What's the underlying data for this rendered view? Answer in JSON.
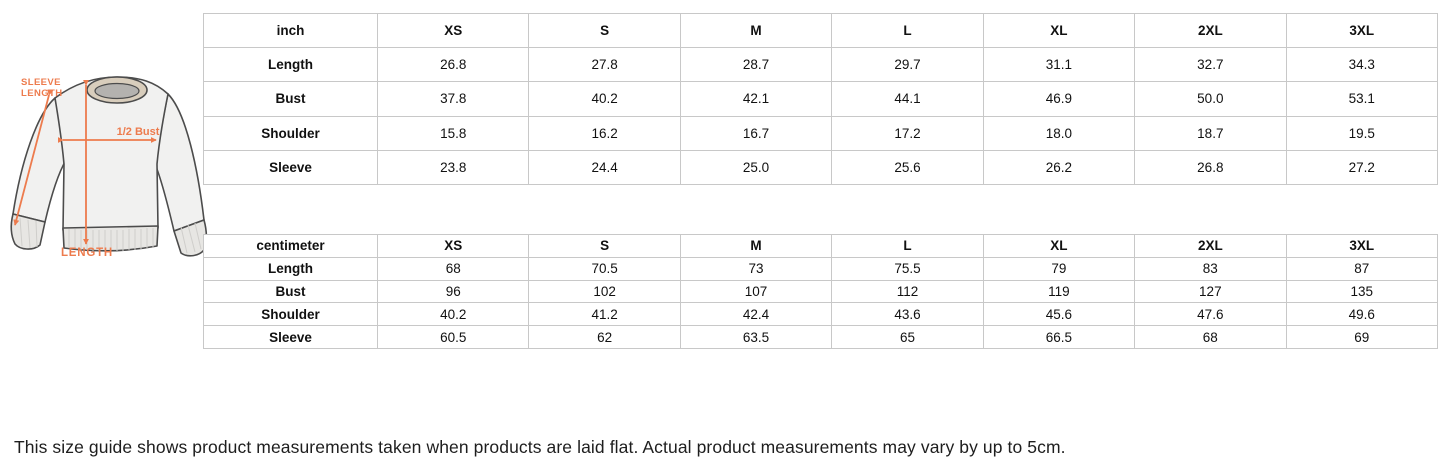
{
  "colors": {
    "accent_orange": "#ed7b4d",
    "table_border": "#c8c8c8",
    "garment_outline": "#4c4c4c",
    "garment_fill": "#f1f1f0",
    "rib_fill": "#e7e6e3",
    "collar_outer": "#d8cdbc",
    "collar_inner": "#b4b2af"
  },
  "diagram": {
    "name": "sweatshirt-measurement-diagram",
    "labels": {
      "sleeve_line1": "SLEEVE",
      "sleeve_line2": "LENGTH",
      "half_bust": "1/2 Bust",
      "length": "LENGTH"
    }
  },
  "tables": [
    {
      "unit_label": "inch",
      "columns": [
        "XS",
        "S",
        "M",
        "L",
        "XL",
        "2XL",
        "3XL"
      ],
      "rows": [
        {
          "label": "Length",
          "values": [
            "26.8",
            "27.8",
            "28.7",
            "29.7",
            "31.1",
            "32.7",
            "34.3"
          ]
        },
        {
          "label": "Bust",
          "values": [
            "37.8",
            "40.2",
            "42.1",
            "44.1",
            "46.9",
            "50.0",
            "53.1"
          ]
        },
        {
          "label": "Shoulder",
          "values": [
            "15.8",
            "16.2",
            "16.7",
            "17.2",
            "18.0",
            "18.7",
            "19.5"
          ]
        },
        {
          "label": "Sleeve",
          "values": [
            "23.8",
            "24.4",
            "25.0",
            "25.6",
            "26.2",
            "26.8",
            "27.2"
          ]
        }
      ]
    },
    {
      "unit_label": "centimeter",
      "columns": [
        "XS",
        "S",
        "M",
        "L",
        "XL",
        "2XL",
        "3XL"
      ],
      "rows": [
        {
          "label": "Length",
          "values": [
            "68",
            "70.5",
            "73",
            "75.5",
            "79",
            "83",
            "87"
          ]
        },
        {
          "label": "Bust",
          "values": [
            "96",
            "102",
            "107",
            "112",
            "119",
            "127",
            "135"
          ]
        },
        {
          "label": "Shoulder",
          "values": [
            "40.2",
            "41.2",
            "42.4",
            "43.6",
            "45.6",
            "47.6",
            "49.6"
          ]
        },
        {
          "label": "Sleeve",
          "values": [
            "60.5",
            "62",
            "63.5",
            "65",
            "66.5",
            "68",
            "69"
          ]
        }
      ]
    }
  ],
  "note": "This size guide shows product measurements taken when products are laid flat. Actual product measurements may vary by up to 5cm."
}
